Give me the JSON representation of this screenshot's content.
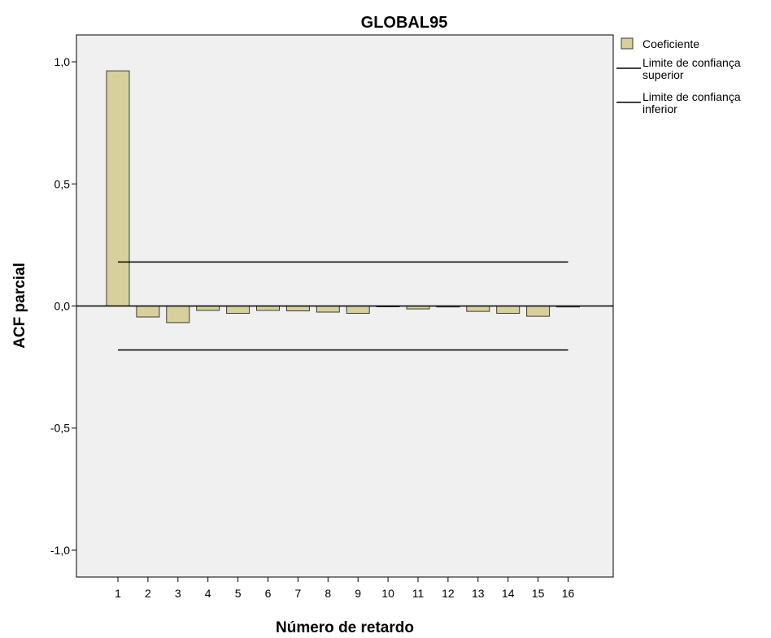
{
  "chart_data": {
    "type": "bar",
    "title": "GLOBAL95",
    "xlabel": "Número de retardo",
    "ylabel": "ACF parcial",
    "categories": [
      "1",
      "2",
      "3",
      "4",
      "5",
      "6",
      "7",
      "8",
      "9",
      "10",
      "11",
      "12",
      "13",
      "14",
      "15",
      "16"
    ],
    "series": [
      {
        "name": "Coeficiente",
        "values": [
          0.963,
          -0.045,
          -0.068,
          -0.018,
          -0.03,
          -0.018,
          -0.02,
          -0.025,
          -0.03,
          0.0,
          -0.012,
          -0.004,
          -0.022,
          -0.03,
          -0.042,
          -0.004
        ]
      }
    ],
    "upper_confidence_limit": 0.18,
    "lower_confidence_limit": -0.18,
    "ylim": [
      -1.11,
      1.11
    ],
    "yticks": [
      1.0,
      0.5,
      0.0,
      -0.5,
      -1.0
    ],
    "ytick_labels": [
      "1,0",
      "0,5",
      "0,0",
      "-0,5",
      "-1,0"
    ],
    "grid": false,
    "legend_position": "right",
    "legend": [
      {
        "label_lines": [
          "Coeficiente"
        ],
        "kind": "swatch"
      },
      {
        "label_lines": [
          "Limite de confiança",
          "superior"
        ],
        "kind": "line"
      },
      {
        "label_lines": [
          "Limite de confiança",
          "inferior"
        ],
        "kind": "line"
      }
    ],
    "colors": {
      "plot_background": "#f0f0f0",
      "bar_fill": "#d8d09c",
      "bar_stroke": "#3a3a3a",
      "line": "#000000"
    }
  }
}
